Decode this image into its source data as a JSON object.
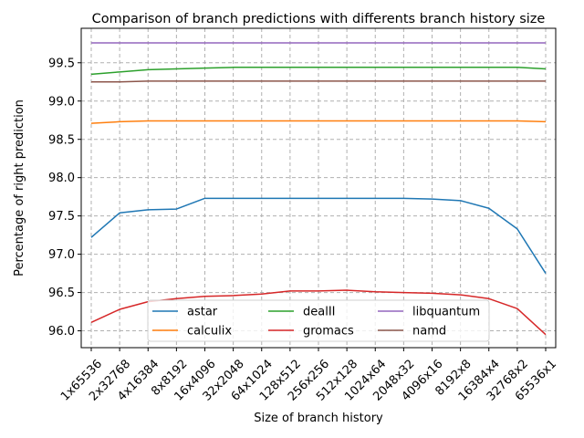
{
  "chart_data": {
    "type": "line",
    "title": "Comparison of branch predictions with differents branch history size",
    "xlabel": "Size of branch history",
    "ylabel": "Percentage of right prediction",
    "categories": [
      "1x65536",
      "2x32768",
      "4x16384",
      "8x8192",
      "16x4096",
      "32x2048",
      "64x1024",
      "128x512",
      "256x256",
      "512x128",
      "1024x64",
      "2048x32",
      "4096x16",
      "8192x8",
      "16384x4",
      "32768x2",
      "65536x1"
    ],
    "ylim": [
      95.78,
      99.95
    ],
    "yticks": [
      96.0,
      96.5,
      97.0,
      97.5,
      98.0,
      98.5,
      99.0,
      99.5
    ],
    "ytick_labels": [
      "96.0",
      "96.5",
      "97.0",
      "97.5",
      "98.0",
      "98.5",
      "99.0",
      "99.5"
    ],
    "grid": true,
    "legend_position": "lower center",
    "series": [
      {
        "name": "astar",
        "color": "#1f77b4",
        "values": [
          97.22,
          97.54,
          97.58,
          97.59,
          97.73,
          97.73,
          97.73,
          97.73,
          97.73,
          97.73,
          97.73,
          97.73,
          97.72,
          97.7,
          97.6,
          97.33,
          96.75
        ]
      },
      {
        "name": "calculix",
        "color": "#ff7f0e",
        "values": [
          98.71,
          98.73,
          98.74,
          98.74,
          98.74,
          98.74,
          98.74,
          98.74,
          98.74,
          98.74,
          98.74,
          98.74,
          98.74,
          98.74,
          98.74,
          98.74,
          98.73
        ]
      },
      {
        "name": "dealII",
        "color": "#2ca02c",
        "values": [
          99.35,
          99.38,
          99.41,
          99.42,
          99.43,
          99.44,
          99.44,
          99.44,
          99.44,
          99.44,
          99.44,
          99.44,
          99.44,
          99.44,
          99.44,
          99.44,
          99.42
        ]
      },
      {
        "name": "gromacs",
        "color": "#d62728",
        "values": [
          96.11,
          96.28,
          96.38,
          96.42,
          96.45,
          96.46,
          96.48,
          96.52,
          96.52,
          96.53,
          96.51,
          96.5,
          96.49,
          96.47,
          96.42,
          96.29,
          95.95
        ]
      },
      {
        "name": "libquantum",
        "color": "#9467bd",
        "values": [
          99.76,
          99.76,
          99.76,
          99.76,
          99.76,
          99.76,
          99.76,
          99.76,
          99.76,
          99.76,
          99.76,
          99.76,
          99.76,
          99.76,
          99.76,
          99.76,
          99.76
        ]
      },
      {
        "name": "namd",
        "color": "#8c564b",
        "values": [
          99.25,
          99.25,
          99.26,
          99.26,
          99.26,
          99.26,
          99.26,
          99.26,
          99.26,
          99.26,
          99.26,
          99.26,
          99.26,
          99.26,
          99.26,
          99.26,
          99.26
        ]
      }
    ]
  }
}
